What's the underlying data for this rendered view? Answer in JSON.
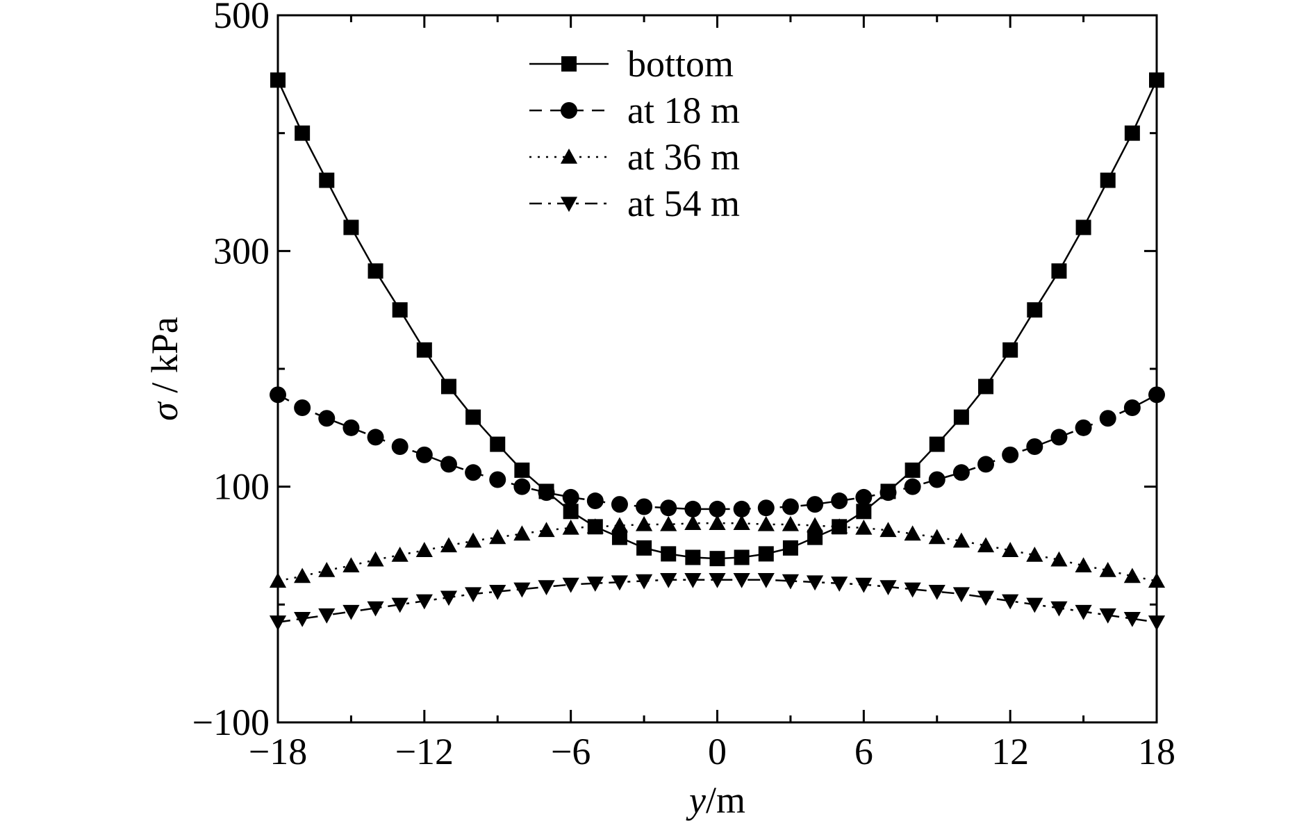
{
  "chart_data": {
    "type": "line",
    "xlabel": {
      "var": "y",
      "unit": "/m"
    },
    "ylabel": {
      "var": "σ",
      "unit": " / kPa"
    },
    "xlim": [
      -18,
      18
    ],
    "ylim": [
      -100,
      500
    ],
    "xticks": [
      -18,
      -12,
      -6,
      0,
      6,
      12,
      18
    ],
    "xticks_minor": [
      -15,
      -9,
      -3,
      3,
      9,
      15
    ],
    "yticks": [
      -100,
      100,
      300,
      500
    ],
    "yticks_minor": [
      0,
      200,
      400
    ],
    "grid": false,
    "legend_position": "top-center",
    "x": [
      -18,
      -17,
      -16,
      -15,
      -14,
      -13,
      -12,
      -11,
      -10,
      -9,
      -8,
      -7,
      -6,
      -5,
      -4,
      -3,
      -2,
      -1,
      0,
      1,
      2,
      3,
      4,
      5,
      6,
      7,
      8,
      9,
      10,
      11,
      12,
      13,
      14,
      15,
      16,
      17,
      18
    ],
    "series": [
      {
        "name": "bottom",
        "marker": "square",
        "line": "solid",
        "values": [
          445,
          400,
          360,
          320,
          283,
          250,
          216,
          185,
          159,
          136,
          114,
          96,
          79,
          66,
          57,
          48,
          43,
          40,
          39,
          40,
          43,
          48,
          57,
          66,
          79,
          96,
          114,
          136,
          159,
          185,
          216,
          250,
          283,
          320,
          360,
          400,
          445
        ]
      },
      {
        "name": "at 18 m",
        "marker": "circle",
        "line": "dashed",
        "values": [
          178,
          167,
          158,
          150,
          142,
          134,
          127,
          119,
          112,
          106,
          100,
          95,
          91,
          88,
          85,
          83,
          82,
          81,
          81,
          81,
          82,
          83,
          85,
          88,
          91,
          95,
          100,
          106,
          112,
          119,
          127,
          134,
          142,
          150,
          158,
          167,
          178
        ]
      },
      {
        "name": "at 36 m",
        "marker": "triangle-up",
        "line": "dotted",
        "values": [
          20,
          24,
          29,
          33,
          38,
          42,
          46,
          50,
          54,
          57,
          60,
          63,
          65,
          66,
          67,
          68,
          68,
          69,
          69,
          69,
          68,
          68,
          67,
          66,
          65,
          63,
          60,
          57,
          54,
          50,
          46,
          42,
          38,
          33,
          29,
          24,
          20
        ]
      },
      {
        "name": "at 54 m",
        "marker": "triangle-down",
        "line": "dashdot",
        "values": [
          -15,
          -12,
          -9,
          -6,
          -3,
          0,
          3,
          6,
          9,
          11,
          13,
          15,
          17,
          18,
          19,
          20,
          21,
          21,
          21,
          21,
          21,
          20,
          19,
          18,
          17,
          15,
          13,
          11,
          9,
          6,
          3,
          0,
          -3,
          -6,
          -9,
          -12,
          -15
        ]
      }
    ]
  }
}
